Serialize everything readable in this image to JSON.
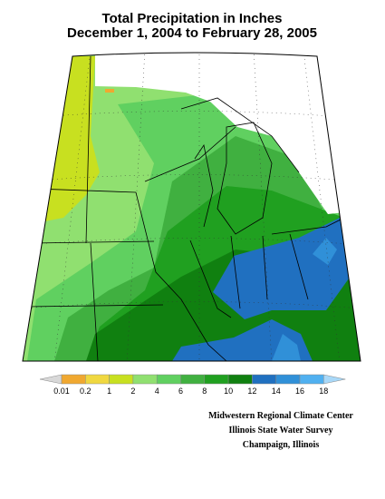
{
  "header": {
    "title": "Total Precipitation in Inches",
    "subtitle": "December 1, 2004 to February 28, 2005"
  },
  "legend": {
    "colors": [
      "#d8d8d8",
      "#f0a830",
      "#f0d840",
      "#c8e020",
      "#90e070",
      "#60d060",
      "#40b040",
      "#20a020",
      "#108010",
      "#2070c0",
      "#3090d8",
      "#50b0f0",
      "#a8d8f8"
    ],
    "labels": [
      "0.01",
      "0.2",
      "1",
      "2",
      "4",
      "6",
      "8",
      "10",
      "12",
      "14",
      "16",
      "18"
    ]
  },
  "credits": [
    "Midwestern Regional Climate Center",
    "Illinois State Water Survey",
    "Champaign, Illinois"
  ]
}
